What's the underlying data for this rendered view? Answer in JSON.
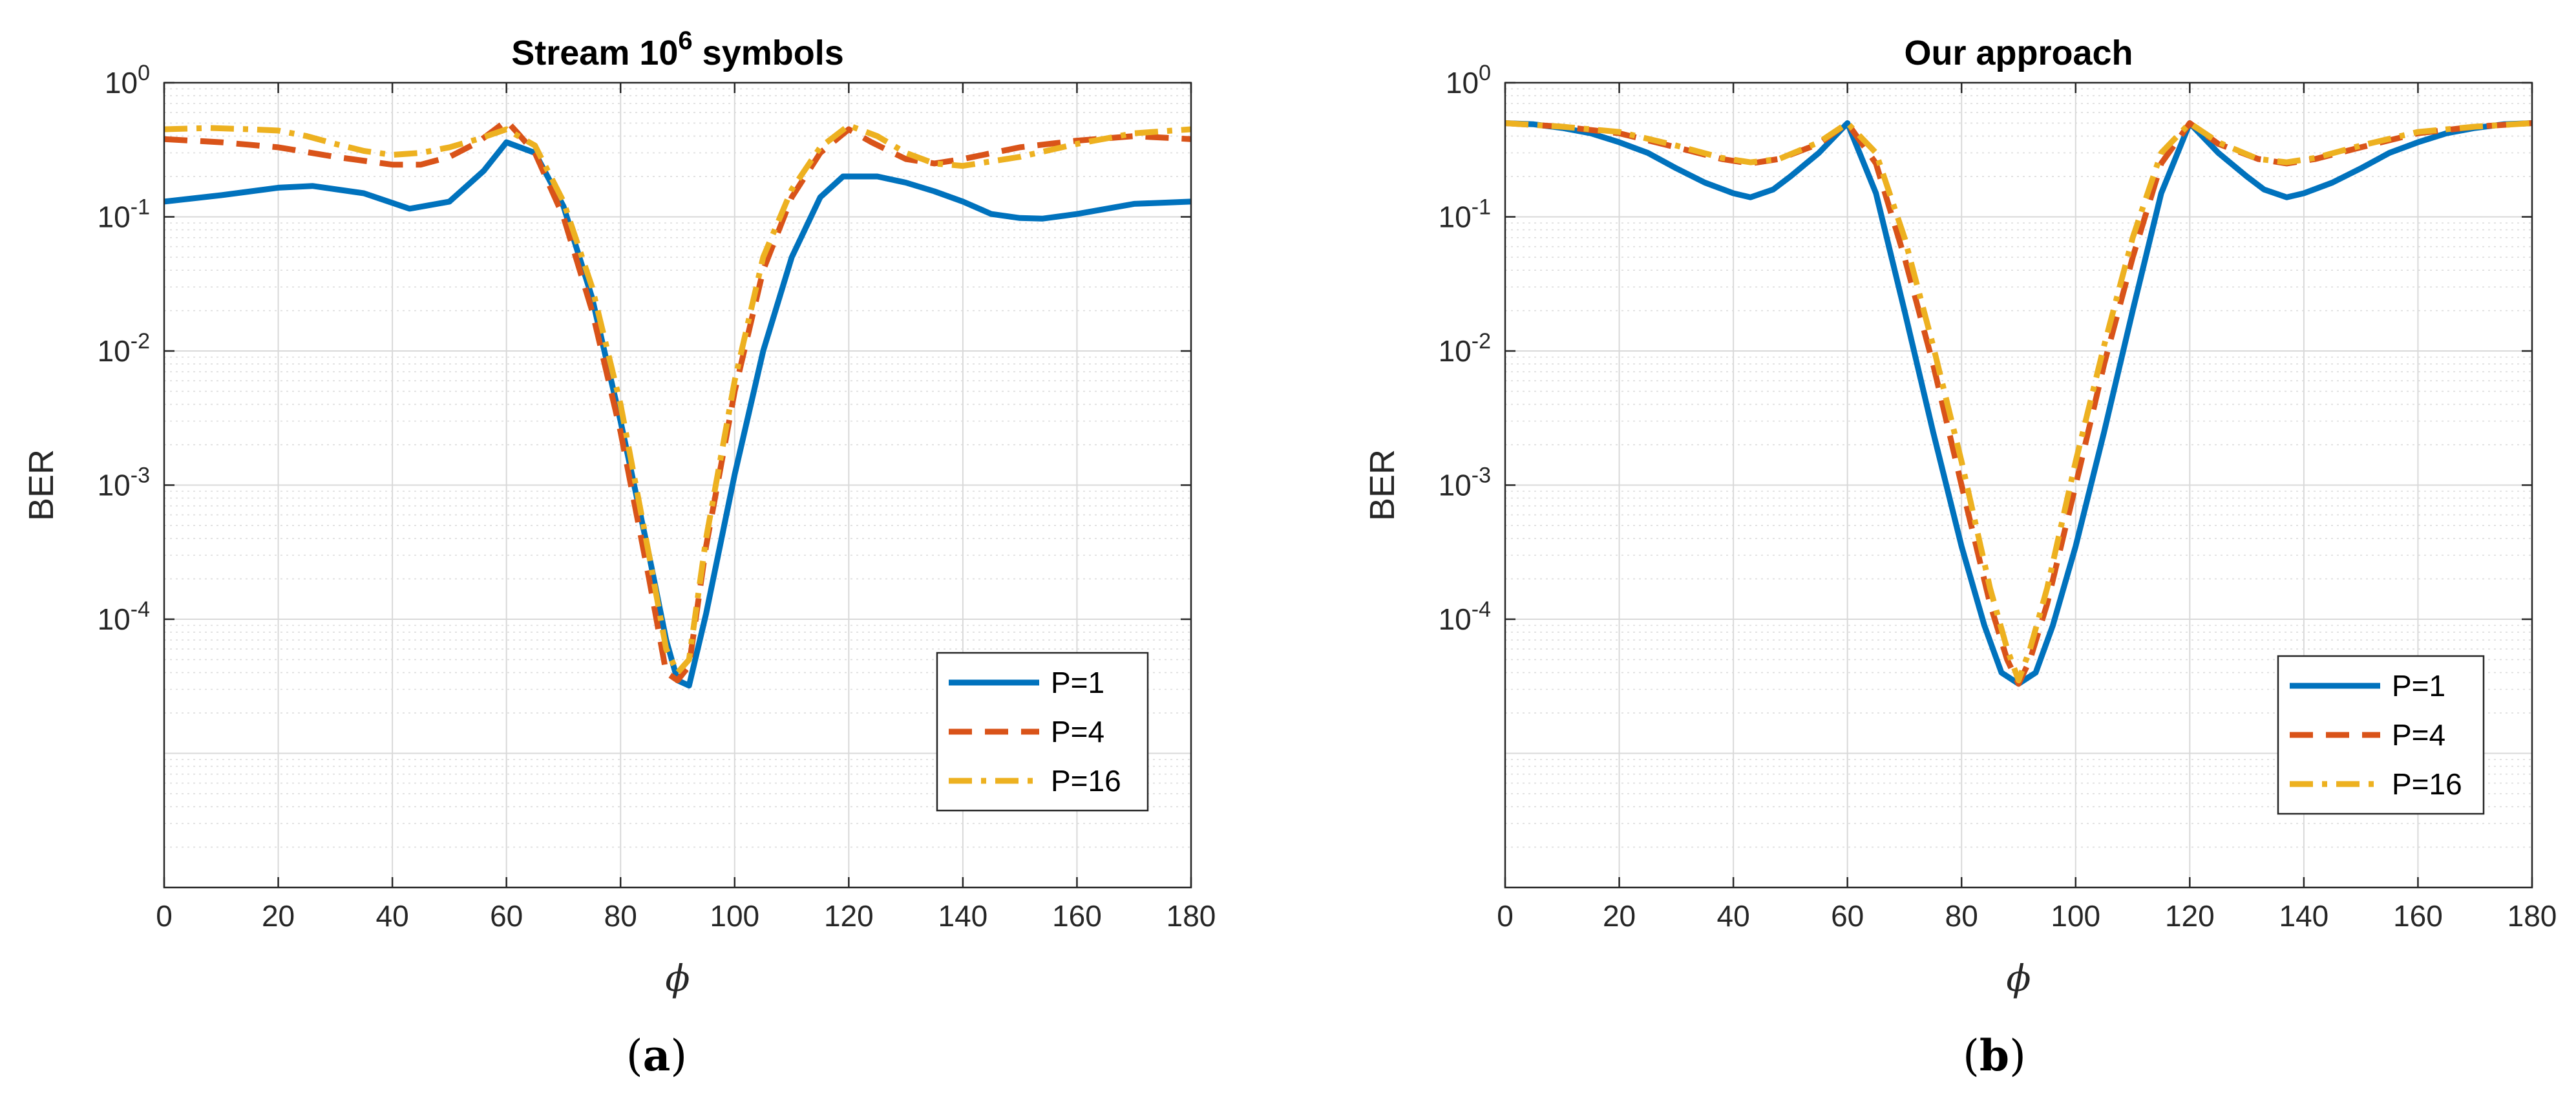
{
  "chart_data": [
    {
      "type": "line",
      "panel_label": "a",
      "title_main": "Stream 10",
      "title_exponent": "6",
      "title_rest": " symbols",
      "xlabel": "ϕ",
      "ylabel": "BER",
      "xlim": [
        0,
        180
      ],
      "ylim": [
        1e-06,
        1
      ],
      "yscale": "log",
      "grid": true,
      "legend_position": "bottom-right",
      "x_ticks": [
        0,
        20,
        40,
        60,
        80,
        100,
        120,
        140,
        160,
        180
      ],
      "y_ticks": [
        {
          "value": 1,
          "base": "10",
          "exp": "0"
        },
        {
          "value": 0.1,
          "base": "10",
          "exp": "-1"
        },
        {
          "value": 0.01,
          "base": "10",
          "exp": "-2"
        },
        {
          "value": 0.001,
          "base": "10",
          "exp": "-3"
        },
        {
          "value": 0.0001,
          "base": "10",
          "exp": "-4"
        }
      ],
      "series": [
        {
          "name": "P=1",
          "color": "#0072BD",
          "dash": "solid",
          "x": [
            0,
            10,
            20,
            26,
            35,
            43,
            50,
            56,
            60,
            65,
            70,
            75,
            80,
            85,
            88,
            90,
            92,
            95,
            100,
            105,
            110,
            115,
            119,
            125,
            130,
            135,
            140,
            145,
            150,
            154,
            160,
            170,
            180
          ],
          "y": [
            0.13,
            0.145,
            0.165,
            0.17,
            0.15,
            0.115,
            0.13,
            0.22,
            0.36,
            0.3,
            0.12,
            0.025,
            0.003,
            0.0003,
            7e-05,
            3.5e-05,
            3.2e-05,
            0.00011,
            0.0012,
            0.01,
            0.05,
            0.14,
            0.2,
            0.2,
            0.18,
            0.155,
            0.13,
            0.105,
            0.098,
            0.097,
            0.105,
            0.125,
            0.13
          ]
        },
        {
          "name": "P=4",
          "color": "#D95319",
          "dash": "dash",
          "x": [
            0,
            10,
            20,
            30,
            40,
            45,
            50,
            55,
            60,
            62,
            65,
            70,
            75,
            80,
            85,
            88,
            90,
            92,
            95,
            100,
            105,
            110,
            115,
            120,
            124,
            130,
            135,
            140,
            150,
            160,
            170,
            180
          ],
          "y": [
            0.38,
            0.36,
            0.33,
            0.28,
            0.245,
            0.245,
            0.28,
            0.36,
            0.52,
            0.42,
            0.3,
            0.1,
            0.02,
            0.0025,
            0.0002,
            4e-05,
            3.5e-05,
            4.5e-05,
            0.00035,
            0.005,
            0.04,
            0.14,
            0.3,
            0.45,
            0.36,
            0.27,
            0.25,
            0.27,
            0.33,
            0.37,
            0.4,
            0.38
          ]
        },
        {
          "name": "P=16",
          "color": "#EDB120",
          "dash": "dashdot",
          "x": [
            0,
            8,
            15,
            20,
            25,
            30,
            35,
            40,
            45,
            50,
            55,
            60,
            65,
            70,
            75,
            80,
            85,
            88,
            90,
            92,
            95,
            100,
            105,
            110,
            115,
            120,
            125,
            130,
            135,
            140,
            150,
            160,
            170,
            180
          ],
          "y": [
            0.45,
            0.46,
            0.45,
            0.44,
            0.4,
            0.35,
            0.31,
            0.29,
            0.3,
            0.33,
            0.38,
            0.45,
            0.34,
            0.13,
            0.03,
            0.004,
            0.0003,
            6e-05,
            4e-05,
            5e-05,
            0.0004,
            0.006,
            0.05,
            0.16,
            0.33,
            0.48,
            0.4,
            0.3,
            0.25,
            0.24,
            0.28,
            0.35,
            0.42,
            0.45
          ]
        }
      ]
    },
    {
      "type": "line",
      "panel_label": "b",
      "title_main": "Our approach",
      "title_exponent": "",
      "title_rest": "",
      "xlabel": "ϕ",
      "ylabel": "BER",
      "xlim": [
        0,
        180
      ],
      "ylim": [
        1e-06,
        1
      ],
      "yscale": "log",
      "grid": true,
      "legend_position": "bottom-right",
      "x_ticks": [
        0,
        20,
        40,
        60,
        80,
        100,
        120,
        140,
        160,
        180
      ],
      "y_ticks": [
        {
          "value": 1,
          "base": "10",
          "exp": "0"
        },
        {
          "value": 0.1,
          "base": "10",
          "exp": "-1"
        },
        {
          "value": 0.01,
          "base": "10",
          "exp": "-2"
        },
        {
          "value": 0.001,
          "base": "10",
          "exp": "-3"
        },
        {
          "value": 0.0001,
          "base": "10",
          "exp": "-4"
        }
      ],
      "series": [
        {
          "name": "P=1",
          "color": "#0072BD",
          "dash": "solid",
          "x": [
            0,
            5,
            10,
            15,
            20,
            25,
            30,
            35,
            40,
            43,
            47,
            50,
            55,
            60,
            65,
            70,
            75,
            80,
            84,
            87,
            90,
            93,
            96,
            100,
            105,
            110,
            115,
            120,
            125,
            130,
            133,
            137,
            140,
            145,
            150,
            155,
            160,
            165,
            170,
            175,
            180
          ],
          "y": [
            0.5,
            0.49,
            0.46,
            0.42,
            0.36,
            0.3,
            0.23,
            0.18,
            0.15,
            0.14,
            0.16,
            0.2,
            0.3,
            0.5,
            0.15,
            0.02,
            0.0025,
            0.00035,
            9e-05,
            4e-05,
            3.3e-05,
            4e-05,
            9e-05,
            0.00035,
            0.0025,
            0.02,
            0.15,
            0.5,
            0.3,
            0.2,
            0.16,
            0.14,
            0.15,
            0.18,
            0.23,
            0.3,
            0.36,
            0.42,
            0.46,
            0.49,
            0.5
          ]
        },
        {
          "name": "P=4",
          "color": "#D95319",
          "dash": "dash",
          "x": [
            0,
            10,
            20,
            30,
            38,
            43,
            48,
            55,
            60,
            65,
            70,
            75,
            80,
            85,
            88,
            90,
            92,
            95,
            100,
            105,
            110,
            115,
            120,
            125,
            132,
            137,
            142,
            150,
            160,
            170,
            180
          ],
          "y": [
            0.5,
            0.47,
            0.42,
            0.33,
            0.27,
            0.25,
            0.27,
            0.35,
            0.5,
            0.25,
            0.05,
            0.008,
            0.001,
            0.00013,
            5e-05,
            3.3e-05,
            5e-05,
            0.00013,
            0.001,
            0.008,
            0.05,
            0.25,
            0.5,
            0.35,
            0.27,
            0.25,
            0.27,
            0.33,
            0.42,
            0.47,
            0.5
          ]
        },
        {
          "name": "P=16",
          "color": "#EDB120",
          "dash": "dashdot",
          "x": [
            0,
            10,
            20,
            30,
            38,
            43,
            48,
            55,
            60,
            65,
            70,
            75,
            80,
            85,
            88,
            90,
            92,
            95,
            100,
            105,
            110,
            115,
            120,
            125,
            132,
            137,
            142,
            150,
            160,
            170,
            180
          ],
          "y": [
            0.5,
            0.47,
            0.43,
            0.34,
            0.275,
            0.255,
            0.27,
            0.36,
            0.5,
            0.3,
            0.07,
            0.011,
            0.0015,
            0.00017,
            6e-05,
            3.5e-05,
            6e-05,
            0.00017,
            0.0015,
            0.011,
            0.07,
            0.3,
            0.5,
            0.36,
            0.27,
            0.255,
            0.275,
            0.34,
            0.43,
            0.47,
            0.5
          ]
        }
      ]
    }
  ]
}
